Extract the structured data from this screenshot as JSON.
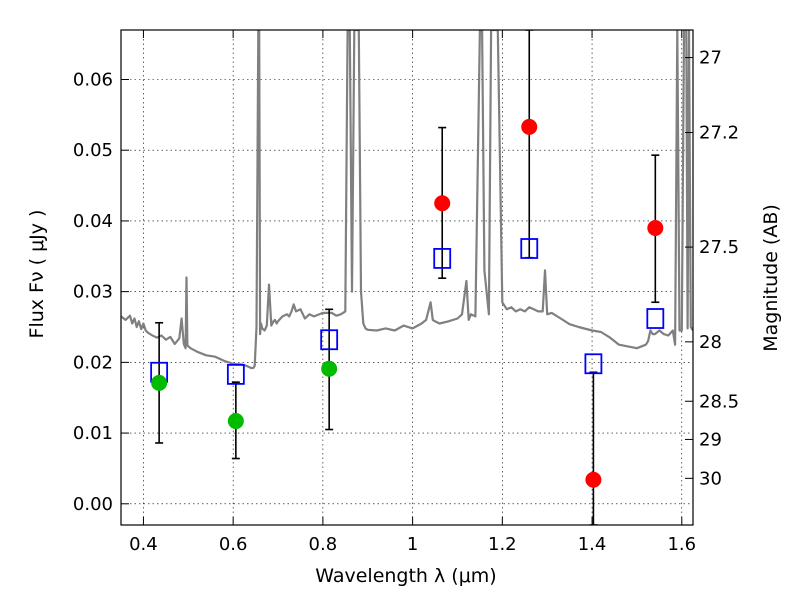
{
  "chart_data": {
    "type": "scatter",
    "title": "",
    "xlabel": "Wavelength  λ (μm)",
    "ylabel": "Flux  Fν  ( μJy )",
    "ylabel_right": "Magnitude (AB)",
    "xlim": [
      0.35,
      1.625
    ],
    "ylim": [
      -0.003,
      0.067
    ],
    "grid": true,
    "x_ticks": [
      {
        "value": 0.4,
        "label": "0.4"
      },
      {
        "value": 0.6,
        "label": "0.6"
      },
      {
        "value": 0.8,
        "label": "0.8"
      },
      {
        "value": 1.0,
        "label": "1"
      },
      {
        "value": 1.2,
        "label": "1.2"
      },
      {
        "value": 1.4,
        "label": "1.4"
      },
      {
        "value": 1.6,
        "label": "1.6"
      }
    ],
    "y_ticks": [
      {
        "value": 0.0,
        "label": "0.00"
      },
      {
        "value": 0.01,
        "label": "0.01"
      },
      {
        "value": 0.02,
        "label": "0.02"
      },
      {
        "value": 0.03,
        "label": "0.03"
      },
      {
        "value": 0.04,
        "label": "0.04"
      },
      {
        "value": 0.05,
        "label": "0.05"
      },
      {
        "value": 0.06,
        "label": "0.06"
      }
    ],
    "right_ticks": [
      {
        "flux": 0.0631,
        "label": "27"
      },
      {
        "flux": 0.0525,
        "label": "27.2"
      },
      {
        "flux": 0.0363,
        "label": "27.5"
      },
      {
        "flux": 0.0229,
        "label": "28"
      },
      {
        "flux": 0.0145,
        "label": "28.5"
      },
      {
        "flux": 0.0091,
        "label": "29"
      },
      {
        "flux": 0.0036,
        "label": "30"
      }
    ],
    "series": [
      {
        "marker": "open-square",
        "color": "#0000ff",
        "points": [
          {
            "x": 0.435,
            "y": 0.0186
          },
          {
            "x": 0.606,
            "y": 0.0183
          },
          {
            "x": 0.814,
            "y": 0.0232
          },
          {
            "x": 1.066,
            "y": 0.0347
          },
          {
            "x": 1.26,
            "y": 0.0361
          },
          {
            "x": 1.403,
            "y": 0.0198
          },
          {
            "x": 1.541,
            "y": 0.0262
          }
        ]
      },
      {
        "marker": "filled-circle",
        "color": "#00bb00",
        "points": [
          {
            "x": 0.435,
            "y": 0.0171,
            "yerr_low": 0.0086,
            "yerr_high": 0.0256
          },
          {
            "x": 0.606,
            "y": 0.0117,
            "yerr_low": 0.0064,
            "yerr_high": 0.0172
          },
          {
            "x": 0.814,
            "y": 0.0191,
            "yerr_low": 0.0105,
            "yerr_high": 0.0275
          }
        ]
      },
      {
        "marker": "filled-circle",
        "color": "#ff0000",
        "points": [
          {
            "x": 1.066,
            "y": 0.0425,
            "yerr_low": 0.0319,
            "yerr_high": 0.0532
          },
          {
            "x": 1.26,
            "y": 0.0533,
            "yerr_low": 0.0348,
            "yerr_high": 0.067
          },
          {
            "x": 1.403,
            "y": 0.0034,
            "yerr_low": -0.003,
            "yerr_high": 0.0186
          },
          {
            "x": 1.541,
            "y": 0.039,
            "yerr_low": 0.0285,
            "yerr_high": 0.0493
          }
        ]
      }
    ],
    "spectrum": {
      "color": "#808080",
      "x": [
        0.35,
        0.36,
        0.37,
        0.375,
        0.38,
        0.385,
        0.39,
        0.395,
        0.4,
        0.405,
        0.41,
        0.42,
        0.43,
        0.44,
        0.45,
        0.46,
        0.47,
        0.48,
        0.485,
        0.49,
        0.494,
        0.496,
        0.498,
        0.505,
        0.52,
        0.54,
        0.56,
        0.58,
        0.6,
        0.62,
        0.63,
        0.64,
        0.645,
        0.648,
        0.652,
        0.656,
        0.658,
        0.66,
        0.662,
        0.665,
        0.67,
        0.675,
        0.68,
        0.685,
        0.69,
        0.693,
        0.697,
        0.7,
        0.71,
        0.72,
        0.725,
        0.73,
        0.735,
        0.74,
        0.75,
        0.76,
        0.77,
        0.78,
        0.8,
        0.82,
        0.83,
        0.84,
        0.85,
        0.855,
        0.86,
        0.865,
        0.87,
        0.875,
        0.88,
        0.885,
        0.89,
        0.895,
        0.9,
        0.92,
        0.94,
        0.96,
        0.98,
        1.0,
        1.02,
        1.03,
        1.04,
        1.045,
        1.05,
        1.06,
        1.08,
        1.1,
        1.11,
        1.12,
        1.125,
        1.13,
        1.14,
        1.15,
        1.155,
        1.16,
        1.17,
        1.175,
        1.18,
        1.185,
        1.19,
        1.2,
        1.21,
        1.22,
        1.23,
        1.24,
        1.25,
        1.26,
        1.27,
        1.28,
        1.29,
        1.295,
        1.3,
        1.31,
        1.33,
        1.35,
        1.37,
        1.4,
        1.42,
        1.44,
        1.46,
        1.5,
        1.52,
        1.525,
        1.53,
        1.535,
        1.54,
        1.55,
        1.56,
        1.57,
        1.58,
        1.585,
        1.59,
        1.595,
        1.6,
        1.605,
        1.61,
        1.613,
        1.616,
        1.62,
        1.625
      ],
      "y": [
        0.0265,
        0.026,
        0.0266,
        0.0255,
        0.0262,
        0.025,
        0.0258,
        0.0247,
        0.0255,
        0.0245,
        0.0242,
        0.0238,
        0.0235,
        0.0238,
        0.0232,
        0.0236,
        0.0226,
        0.0234,
        0.0262,
        0.0226,
        0.022,
        0.032,
        0.0224,
        0.022,
        0.0215,
        0.021,
        0.0208,
        0.0202,
        0.0198,
        0.0197,
        0.0195,
        0.0192,
        0.0192,
        0.0195,
        0.025,
        0.067,
        0.067,
        0.024,
        0.0255,
        0.0248,
        0.0245,
        0.0252,
        0.031,
        0.0252,
        0.0258,
        0.026,
        0.0255,
        0.0258,
        0.0265,
        0.0268,
        0.0265,
        0.0272,
        0.0282,
        0.0272,
        0.0275,
        0.0262,
        0.0268,
        0.0265,
        0.027,
        0.027,
        0.0266,
        0.0268,
        0.0272,
        0.067,
        0.067,
        0.03,
        0.067,
        0.067,
        0.067,
        0.03,
        0.0255,
        0.0248,
        0.0246,
        0.0245,
        0.0248,
        0.0245,
        0.0252,
        0.0248,
        0.0255,
        0.026,
        0.0285,
        0.026,
        0.0258,
        0.0255,
        0.0258,
        0.0262,
        0.0268,
        0.0315,
        0.026,
        0.0268,
        0.0265,
        0.067,
        0.067,
        0.033,
        0.0268,
        0.067,
        0.067,
        0.067,
        0.067,
        0.0285,
        0.0275,
        0.0278,
        0.0272,
        0.0275,
        0.0272,
        0.0278,
        0.0275,
        0.0272,
        0.0272,
        0.033,
        0.0268,
        0.027,
        0.0262,
        0.0254,
        0.025,
        0.0245,
        0.0243,
        0.0235,
        0.0225,
        0.022,
        0.0225,
        0.023,
        0.0245,
        0.024,
        0.024,
        0.0245,
        0.024,
        0.0238,
        0.0245,
        0.0225,
        0.067,
        0.0245,
        0.0245,
        0.067,
        0.067,
        0.0248,
        0.067,
        0.025,
        0.0245
      ]
    }
  }
}
